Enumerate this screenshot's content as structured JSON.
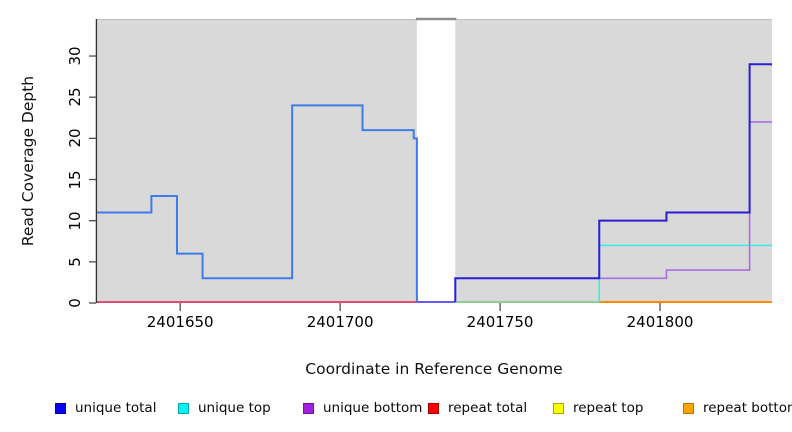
{
  "chart_data": {
    "type": "line",
    "subtype": "step-coverage",
    "title": "",
    "xlabel": "Coordinate in Reference Genome",
    "ylabel": "Read Coverage Depth",
    "xlim": [
      2401624,
      2401835
    ],
    "ylim": [
      0,
      34.5
    ],
    "xticks": [
      2401650,
      2401700,
      2401750,
      2401800
    ],
    "yticks": [
      0,
      5,
      10,
      15,
      20,
      25,
      30
    ],
    "grid": "off",
    "legend_position": "bottom",
    "panel_bg": "#D9D9D9",
    "panel_top_border": "#BEBEBE",
    "axis_color": "#303030",
    "tick_color": "#4D4D4D",
    "gap_band": {
      "x_start": 2401724,
      "x_end": 2401736,
      "fill": "#FFFFFF",
      "top_line_color": "#8E8E8E"
    },
    "x_end": 2401835,
    "series": [
      {
        "name": "unique total",
        "color": "#0000EE",
        "steps": [
          [
            2401624,
            11
          ],
          [
            2401641,
            13
          ],
          [
            2401649,
            6
          ],
          [
            2401657,
            3
          ],
          [
            2401685,
            24
          ],
          [
            2401707,
            21
          ],
          [
            2401723,
            20
          ],
          [
            2401724,
            0
          ],
          [
            2401736,
            3
          ],
          [
            2401781,
            10
          ],
          [
            2401802,
            11
          ],
          [
            2401828,
            29
          ]
        ]
      },
      {
        "name": "unique top",
        "color": "#00E5EE",
        "steps": [
          [
            2401624,
            0
          ],
          [
            2401781,
            7
          ]
        ]
      },
      {
        "name": "unique bottom",
        "color": "#A020F0",
        "steps": [
          [
            2401624,
            0
          ],
          [
            2401736,
            3
          ],
          [
            2401802,
            4
          ],
          [
            2401828,
            22
          ]
        ]
      },
      {
        "name": "repeat total",
        "color": "#FF0000",
        "steps": [
          [
            2401624,
            0
          ]
        ]
      },
      {
        "name": "repeat top",
        "color": "#FFFF00",
        "steps": [
          [
            2401624,
            0
          ]
        ]
      },
      {
        "name": "repeat bottom",
        "color": "#FFA500",
        "steps": [
          [
            2401624,
            0
          ]
        ]
      }
    ],
    "render_lines": [
      {
        "id": "baseline-repeat-total",
        "color": "#DE4F72",
        "width": 2,
        "points": [
          [
            2401624,
            0
          ],
          [
            2401724,
            0
          ]
        ]
      },
      {
        "id": "baseline-blend-green",
        "color": "#82CE8C",
        "width": 1.8,
        "points": [
          [
            2401736,
            0
          ],
          [
            2401781,
            0
          ]
        ]
      },
      {
        "id": "baseline-repeat-bottom",
        "color": "#FF8C00",
        "width": 2,
        "points": [
          [
            2401781,
            0
          ],
          [
            2401835,
            0
          ]
        ]
      },
      {
        "id": "unique-top-line",
        "color": "#3BE9E9",
        "width": 1.6,
        "points": [
          [
            2401781,
            0
          ],
          [
            2401781,
            7
          ],
          [
            2401835,
            7
          ]
        ]
      },
      {
        "id": "unique-bottom-line",
        "color": "#A76FE3",
        "width": 1.6,
        "points": [
          [
            2401736,
            3
          ],
          [
            2401802,
            3
          ],
          [
            2401802,
            4
          ],
          [
            2401828,
            4
          ],
          [
            2401828,
            22
          ],
          [
            2401835,
            22
          ]
        ]
      },
      {
        "id": "unique-total-left",
        "color": "#3E7CEC",
        "width": 2,
        "points": [
          [
            2401624,
            11
          ],
          [
            2401641,
            13
          ],
          [
            2401649,
            6
          ],
          [
            2401657,
            3
          ],
          [
            2401685,
            24
          ],
          [
            2401707,
            21
          ],
          [
            2401723,
            20
          ],
          [
            2401724,
            0
          ]
        ]
      },
      {
        "id": "baseline-blend-violet",
        "color": "#6A5AEF",
        "width": 2,
        "points": [
          [
            2401724,
            0
          ],
          [
            2401736,
            0
          ]
        ]
      },
      {
        "id": "unique-total-right",
        "color": "#2B1FD4",
        "width": 2,
        "points": [
          [
            2401736,
            0
          ],
          [
            2401736,
            3
          ],
          [
            2401781,
            3
          ],
          [
            2401781,
            10
          ],
          [
            2401802,
            10
          ],
          [
            2401802,
            11
          ],
          [
            2401828,
            11
          ],
          [
            2401828,
            29
          ],
          [
            2401835,
            29
          ]
        ]
      }
    ]
  },
  "legend": {
    "items": [
      {
        "label": "unique total",
        "fill": "#0505EE",
        "border": "#0000A8"
      },
      {
        "label": "unique top",
        "fill": "#00F2F2",
        "border": "#00A8A8"
      },
      {
        "label": "unique bottom",
        "fill": "#A21FDE",
        "border": "#7612A8"
      },
      {
        "label": "repeat total",
        "fill": "#FB0007",
        "border": "#A80000"
      },
      {
        "label": "repeat top",
        "fill": "#FCFF00",
        "border": "#A8A800"
      },
      {
        "label": "repeat bottom",
        "fill": "#FFA305",
        "border": "#B87400"
      }
    ]
  }
}
